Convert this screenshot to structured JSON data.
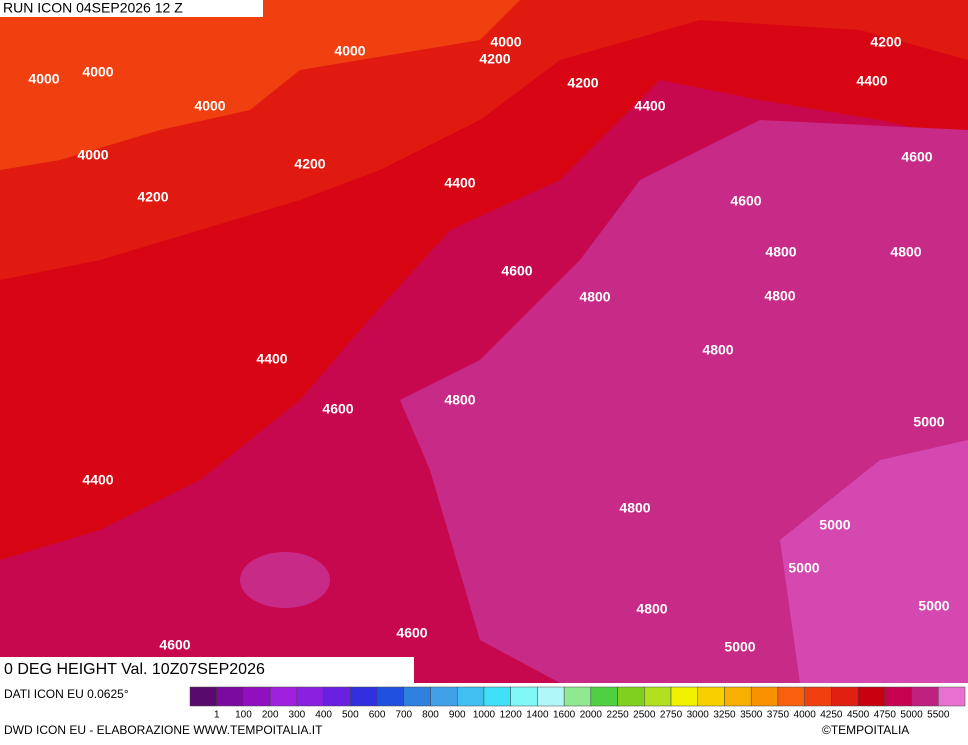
{
  "header": {
    "run": "RUN ICON 04SEP2026 12 Z",
    "field": "0 DEG HEIGHT Val. 10Z07SEP2026"
  },
  "map": {
    "contour_labels": [
      "4000",
      "4000",
      "4000",
      "4000",
      "4200",
      "4000",
      "4000",
      "4200",
      "4400",
      "4200",
      "4400",
      "4200",
      "4400",
      "4600",
      "4200",
      "4600",
      "4600",
      "4800",
      "4800",
      "4800",
      "4800",
      "4800",
      "4400",
      "4600",
      "4800",
      "5000",
      "4400",
      "4800",
      "5000",
      "5000",
      "4800",
      "5000",
      "4600",
      "4600",
      "5000"
    ]
  },
  "legend": {
    "colors": [
      "#5a0a6e",
      "#7a0aa0",
      "#9010c0",
      "#a020e0",
      "#8a20e0",
      "#6a20e0",
      "#3030e0",
      "#2050e0",
      "#3080e0",
      "#40a0e8",
      "#40c0f0",
      "#40e0f8",
      "#80f8f8",
      "#b0f8f8",
      "#90e890",
      "#50d040",
      "#80d020",
      "#b0e020",
      "#f0f000",
      "#f8d000",
      "#f8b000",
      "#f89000",
      "#f86010",
      "#f04010",
      "#e02010",
      "#c80010",
      "#c80050",
      "#c02080",
      "#e870d0"
    ],
    "labels": [
      "1",
      "100",
      "200",
      "300",
      "400",
      "500",
      "600",
      "700",
      "800",
      "900",
      "1000",
      "1200",
      "1400",
      "1600",
      "2000",
      "2250",
      "2500",
      "2750",
      "3000",
      "3250",
      "3500",
      "3750",
      "4000",
      "4250",
      "4500",
      "4750",
      "5000",
      "5500"
    ]
  },
  "footer": {
    "source": "DATI ICON EU 0.0625°",
    "credit": "DWD ICON EU - ELABORAZIONE WWW.TEMPOITALIA.IT",
    "copyright": "©TEMPOITALIA"
  }
}
